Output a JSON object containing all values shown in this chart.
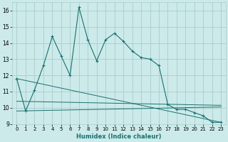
{
  "xlabel": "Humidex (Indice chaleur)",
  "ylabel": "",
  "bg_color": "#cceaea",
  "grid_color": "#aacccc",
  "line_color": "#1a7070",
  "xlim": [
    -0.5,
    23.5
  ],
  "ylim": [
    9,
    16.5
  ],
  "yticks": [
    9,
    10,
    11,
    12,
    13,
    14,
    15,
    16
  ],
  "xticks": [
    0,
    1,
    2,
    3,
    4,
    5,
    6,
    7,
    8,
    9,
    10,
    11,
    12,
    13,
    14,
    15,
    16,
    17,
    18,
    19,
    20,
    21,
    22,
    23
  ],
  "series1_x": [
    0,
    1,
    2,
    3,
    4,
    5,
    6,
    7,
    8,
    9,
    10,
    11,
    12,
    13,
    14,
    15,
    16,
    17,
    18,
    19,
    20,
    21,
    22,
    23
  ],
  "series1_y": [
    11.8,
    9.8,
    11.1,
    12.6,
    14.4,
    13.2,
    12.0,
    16.2,
    14.2,
    12.9,
    14.2,
    14.6,
    14.1,
    13.5,
    13.1,
    13.0,
    12.6,
    10.2,
    9.9,
    9.9,
    9.7,
    9.5,
    9.1,
    9.1
  ],
  "series2_x": [
    0,
    23
  ],
  "series2_y": [
    11.8,
    9.1
  ],
  "series3_x": [
    0,
    23
  ],
  "series3_y": [
    9.8,
    10.05
  ],
  "series4_x": [
    0,
    23
  ],
  "series4_y": [
    10.4,
    10.15
  ]
}
